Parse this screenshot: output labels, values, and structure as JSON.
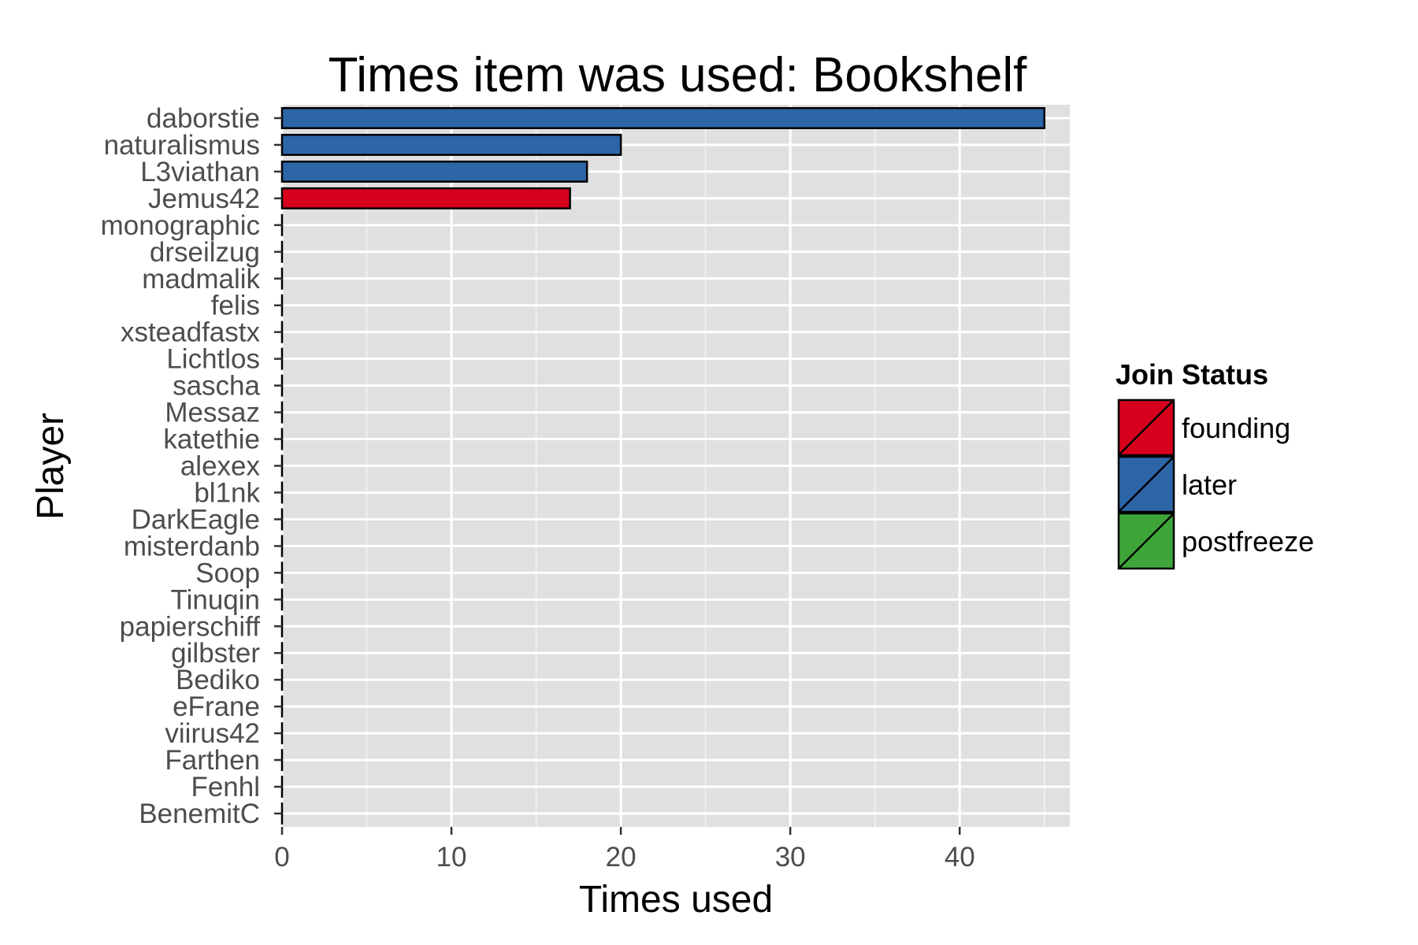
{
  "chart_data": {
    "type": "bar",
    "orientation": "horizontal",
    "title": "Times item was used: Bookshelf",
    "xlabel": "Times used",
    "ylabel": "Player",
    "xlim": [
      0,
      46.5
    ],
    "xticks": [
      "0",
      "10",
      "20",
      "30",
      "40"
    ],
    "grid": true,
    "legend": {
      "title": "Join Status",
      "placement": "right",
      "entries": [
        {
          "name": "founding",
          "color": "#d7001c"
        },
        {
          "name": "later",
          "color": "#2c66a7"
        },
        {
          "name": "postfreeze",
          "color": "#3ea53a"
        }
      ]
    },
    "categories": [
      "daborstie",
      "naturalismus",
      "L3viathan",
      "Jemus42",
      "monographic",
      "drseilzug",
      "madmalik",
      "felis",
      "xsteadfastx",
      "Lichtlos",
      "sascha",
      "Messaz",
      "katethie",
      "alexex",
      "bl1nk",
      "DarkEagle",
      "misterdanb",
      "Soop",
      "Tinuqin",
      "papierschiff",
      "gilbster",
      "Bediko",
      "eFrane",
      "viirus42",
      "Farthen",
      "Fenhl",
      "BenemitC"
    ],
    "values": [
      45,
      20,
      18,
      17,
      0,
      0,
      0,
      0,
      0,
      0,
      0,
      0,
      0,
      0,
      0,
      0,
      0,
      0,
      0,
      0,
      0,
      0,
      0,
      0,
      0,
      0,
      0
    ],
    "status": [
      "later",
      "later",
      "later",
      "founding",
      "later",
      "later",
      "later",
      "later",
      "later",
      "later",
      "later",
      "later",
      "later",
      "later",
      "later",
      "later",
      "later",
      "later",
      "later",
      "later",
      "later",
      "later",
      "later",
      "later",
      "later",
      "later",
      "later"
    ]
  }
}
